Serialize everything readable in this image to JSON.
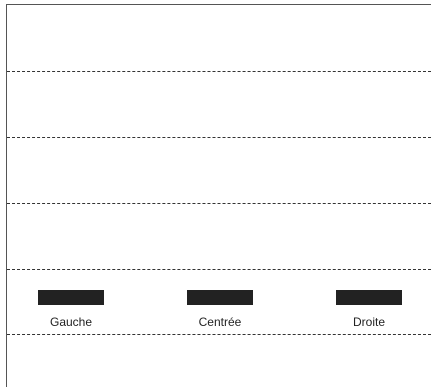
{
  "alignment_options": [
    {
      "id": "left",
      "label": "Gauche"
    },
    {
      "id": "center",
      "label": "Centrée"
    },
    {
      "id": "right",
      "label": "Droite"
    }
  ],
  "colors": {
    "bar": "#222222",
    "divider": "#333333",
    "background": "#ffffff"
  }
}
